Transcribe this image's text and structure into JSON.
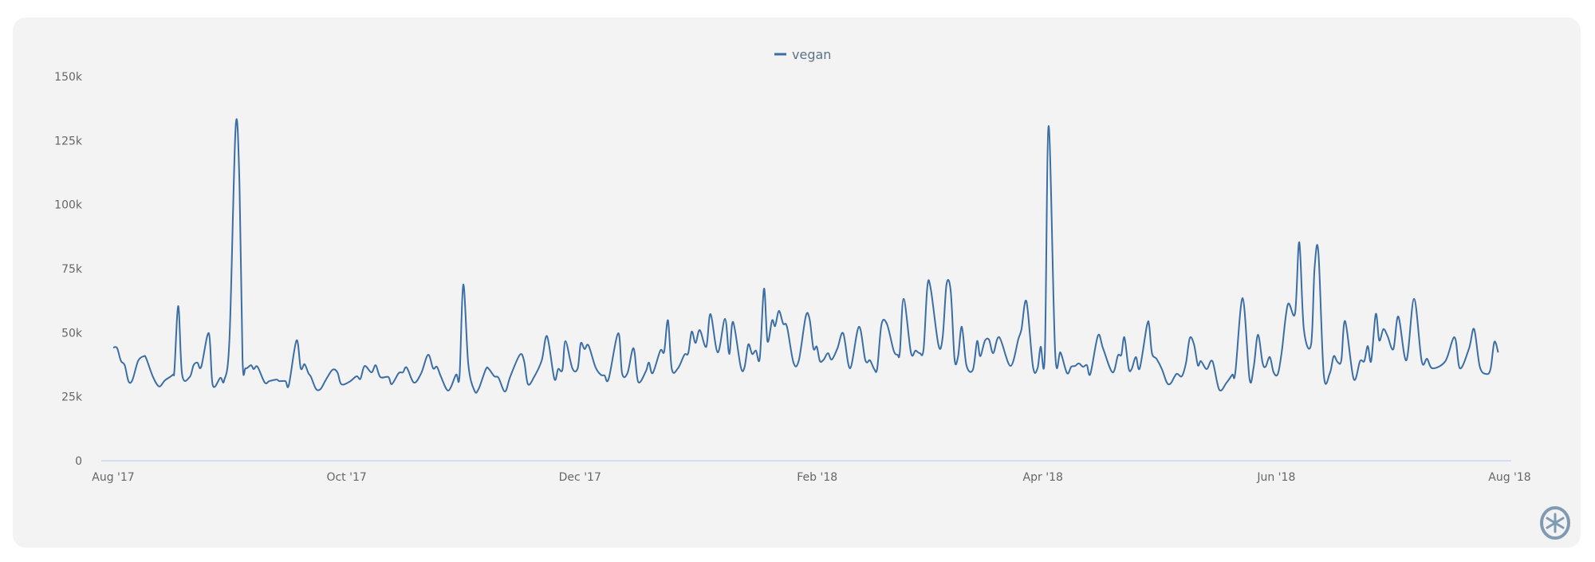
{
  "chart_data": {
    "type": "line",
    "title": "",
    "xlabel": "",
    "ylabel": "",
    "x_unit": "days since Aug 1 2017",
    "value_scale": 1000,
    "ylim": [
      0,
      150
    ],
    "xlim": [
      0,
      365
    ],
    "grid": false,
    "legend_position": "top-center",
    "y_ticks": [
      {
        "value": 0,
        "label": "0"
      },
      {
        "value": 25,
        "label": "25k"
      },
      {
        "value": 50,
        "label": "50k"
      },
      {
        "value": 75,
        "label": "75k"
      },
      {
        "value": 100,
        "label": "100k"
      },
      {
        "value": 125,
        "label": "125k"
      },
      {
        "value": 150,
        "label": "150k"
      }
    ],
    "x_ticks": [
      {
        "value": 0,
        "label": "Aug '17"
      },
      {
        "value": 61,
        "label": "Oct '17"
      },
      {
        "value": 122,
        "label": "Dec '17"
      },
      {
        "value": 184,
        "label": "Feb '18"
      },
      {
        "value": 243,
        "label": "Apr '18"
      },
      {
        "value": 304,
        "label": "Jun '18"
      },
      {
        "value": 365,
        "label": "Aug '18"
      }
    ],
    "series": [
      {
        "name": "vegan",
        "color": "#3a6ea5",
        "points": [
          [
            0,
            44.2
          ],
          [
            1,
            44
          ],
          [
            2,
            39
          ],
          [
            3,
            37.3
          ],
          [
            4,
            31
          ],
          [
            5,
            31.5
          ],
          [
            6.5,
            39
          ],
          [
            8,
            40.8
          ],
          [
            8.6,
            40
          ],
          [
            10.4,
            32.7
          ],
          [
            12,
            29
          ],
          [
            13.5,
            31.4
          ],
          [
            15.6,
            33.6
          ],
          [
            16,
            35.8
          ],
          [
            17,
            60.4
          ],
          [
            18,
            33.6
          ],
          [
            20,
            32.7
          ],
          [
            21,
            37.3
          ],
          [
            22,
            38.3
          ],
          [
            23,
            36.7
          ],
          [
            25,
            49.8
          ],
          [
            26,
            29.6
          ],
          [
            28,
            32.4
          ],
          [
            29,
            31.4
          ],
          [
            30.4,
            48
          ],
          [
            32,
            130.4
          ],
          [
            33,
            108
          ],
          [
            33.8,
            39.8
          ],
          [
            34.6,
            36.1
          ],
          [
            36,
            37.3
          ],
          [
            36.7,
            35.8
          ],
          [
            37.7,
            36.7
          ],
          [
            39.6,
            30.5
          ],
          [
            40.8,
            31.1
          ],
          [
            42.7,
            31.7
          ],
          [
            43.4,
            31.1
          ],
          [
            45,
            31.1
          ],
          [
            45.9,
            29.6
          ],
          [
            47.9,
            47
          ],
          [
            49,
            36.1
          ],
          [
            50,
            37.7
          ],
          [
            51,
            34.2
          ],
          [
            51.7,
            32.7
          ],
          [
            53,
            28
          ],
          [
            54.2,
            28
          ],
          [
            55.5,
            31.4
          ],
          [
            57.3,
            35.5
          ],
          [
            58.6,
            34.5
          ],
          [
            59.6,
            29.9
          ],
          [
            61.7,
            30.8
          ],
          [
            63.6,
            33
          ],
          [
            64.6,
            32
          ],
          [
            65.7,
            37
          ],
          [
            67.5,
            34.5
          ],
          [
            68.6,
            37.3
          ],
          [
            69.8,
            32.7
          ],
          [
            71.9,
            32.7
          ],
          [
            72.8,
            29.9
          ],
          [
            74.6,
            34.2
          ],
          [
            75.7,
            34.5
          ],
          [
            76.7,
            36.4
          ],
          [
            78.6,
            30.5
          ],
          [
            80.5,
            34.2
          ],
          [
            82.3,
            41.4
          ],
          [
            83.6,
            36.1
          ],
          [
            84.6,
            36.7
          ],
          [
            85.7,
            32.7
          ],
          [
            87.6,
            27.4
          ],
          [
            89.6,
            33.6
          ],
          [
            90.5,
            33
          ],
          [
            91.5,
            68.8
          ],
          [
            92.8,
            37.7
          ],
          [
            94.4,
            27.4
          ],
          [
            95.5,
            28
          ],
          [
            97.4,
            35.8
          ],
          [
            98.2,
            35.8
          ],
          [
            99.6,
            33
          ],
          [
            100.7,
            32.4
          ],
          [
            102.4,
            27
          ],
          [
            103.8,
            33
          ],
          [
            106.3,
            41.4
          ],
          [
            107.4,
            38.9
          ],
          [
            108.4,
            29.9
          ],
          [
            110,
            32.7
          ],
          [
            112,
            39.2
          ],
          [
            113.4,
            48.6
          ],
          [
            115.3,
            32
          ],
          [
            116.3,
            35.8
          ],
          [
            117.4,
            35.5
          ],
          [
            118.2,
            46.7
          ],
          [
            120,
            36.1
          ],
          [
            121.4,
            36.1
          ],
          [
            122.2,
            45.8
          ],
          [
            123.2,
            43.6
          ],
          [
            124.2,
            45.1
          ],
          [
            126,
            36.7
          ],
          [
            127.4,
            33.6
          ],
          [
            128.4,
            33.3
          ],
          [
            129.5,
            32
          ],
          [
            132,
            49.8
          ],
          [
            133,
            34.2
          ],
          [
            134.4,
            34.2
          ],
          [
            136,
            43.9
          ],
          [
            137.2,
            30.8
          ],
          [
            139.2,
            34.9
          ],
          [
            140,
            38.3
          ],
          [
            141,
            34.2
          ],
          [
            143,
            43
          ],
          [
            144,
            42.6
          ],
          [
            145,
            54.8
          ],
          [
            146,
            35.8
          ],
          [
            147.6,
            36.1
          ],
          [
            149.3,
            41.4
          ],
          [
            150.3,
            42
          ],
          [
            151.2,
            50.4
          ],
          [
            152.2,
            46
          ],
          [
            153.3,
            51
          ],
          [
            155,
            44.5
          ],
          [
            156.1,
            57.3
          ],
          [
            158,
            42.3
          ],
          [
            159.9,
            55.4
          ],
          [
            161,
            41.7
          ],
          [
            162,
            54.2
          ],
          [
            164,
            36.7
          ],
          [
            165,
            36.4
          ],
          [
            166,
            45.4
          ],
          [
            167,
            41.7
          ],
          [
            168,
            43
          ],
          [
            169,
            40.1
          ],
          [
            170.1,
            67.2
          ],
          [
            171,
            46.7
          ],
          [
            172.2,
            54.8
          ],
          [
            173,
            52.6
          ],
          [
            174,
            58.5
          ],
          [
            175.1,
            53.5
          ],
          [
            176.1,
            52.3
          ],
          [
            177.8,
            38.3
          ],
          [
            179.2,
            39.2
          ],
          [
            181,
            56.3
          ],
          [
            182,
            55.4
          ],
          [
            183,
            43.9
          ],
          [
            183.9,
            44.5
          ],
          [
            184.7,
            38.9
          ],
          [
            185.7,
            39.5
          ],
          [
            186.8,
            42
          ],
          [
            187.8,
            39.5
          ],
          [
            189.3,
            43.9
          ],
          [
            190.8,
            49.8
          ],
          [
            192.6,
            36.1
          ],
          [
            194.9,
            52.3
          ],
          [
            196.6,
            39.2
          ],
          [
            197.8,
            39.2
          ],
          [
            198.9,
            35.8
          ],
          [
            199.7,
            36.1
          ],
          [
            200.8,
            53.2
          ],
          [
            202.2,
            53.5
          ],
          [
            204,
            43
          ],
          [
            205,
            41.4
          ],
          [
            205.6,
            42.3
          ],
          [
            206.6,
            63.2
          ],
          [
            208.5,
            42.3
          ],
          [
            209.7,
            43
          ],
          [
            210.8,
            42
          ],
          [
            211.8,
            43.6
          ],
          [
            212.8,
            68.2
          ],
          [
            213.7,
            66.9
          ],
          [
            215.7,
            45.1
          ],
          [
            216.8,
            48.2
          ],
          [
            217.8,
            68.8
          ],
          [
            218.9,
            66.3
          ],
          [
            219.9,
            39.8
          ],
          [
            220.8,
            40.5
          ],
          [
            221.8,
            52.3
          ],
          [
            223,
            37.3
          ],
          [
            224.7,
            35.5
          ],
          [
            225.8,
            46.7
          ],
          [
            226.6,
            40.8
          ],
          [
            227.8,
            46.7
          ],
          [
            228.9,
            47.3
          ],
          [
            230,
            42
          ],
          [
            231.6,
            48.2
          ],
          [
            234.5,
            37
          ],
          [
            236.6,
            47.6
          ],
          [
            237.4,
            51.4
          ],
          [
            238.7,
            62.2
          ],
          [
            240.4,
            36.7
          ],
          [
            241.6,
            36.1
          ],
          [
            242.4,
            44.5
          ],
          [
            243.5,
            41.4
          ],
          [
            244.5,
            130.7
          ],
          [
            246.2,
            42.3
          ],
          [
            247.6,
            42.3
          ],
          [
            249.3,
            34.2
          ],
          [
            250.4,
            36.7
          ],
          [
            251.4,
            37
          ],
          [
            252.4,
            38
          ],
          [
            253.5,
            36.7
          ],
          [
            254.5,
            37.3
          ],
          [
            255.4,
            33.9
          ],
          [
            257.4,
            48.9
          ],
          [
            258.7,
            43.9
          ],
          [
            261.2,
            34.5
          ],
          [
            262.6,
            41.1
          ],
          [
            263.5,
            41.4
          ],
          [
            264.3,
            48.2
          ],
          [
            265.4,
            36.1
          ],
          [
            266.2,
            35.8
          ],
          [
            267.3,
            40.5
          ],
          [
            268.3,
            36.1
          ],
          [
            270.2,
            52.9
          ],
          [
            270.8,
            52.6
          ],
          [
            271.5,
            42
          ],
          [
            272.7,
            39.8
          ],
          [
            274.1,
            35.8
          ],
          [
            275.4,
            30.5
          ],
          [
            276.4,
            30.2
          ],
          [
            277.9,
            33.9
          ],
          [
            279.3,
            33
          ],
          [
            280.4,
            38.3
          ],
          [
            281.4,
            47.9
          ],
          [
            282.5,
            45.4
          ],
          [
            283.5,
            37.3
          ],
          [
            284.3,
            38.9
          ],
          [
            285.8,
            35.8
          ],
          [
            287.3,
            38.9
          ],
          [
            289.1,
            27.7
          ],
          [
            291,
            30.5
          ],
          [
            292.5,
            33.6
          ],
          [
            293.3,
            34.5
          ],
          [
            295.2,
            63.5
          ],
          [
            297,
            32
          ],
          [
            298.1,
            36.7
          ],
          [
            299.2,
            49.2
          ],
          [
            300.4,
            38.3
          ],
          [
            301.2,
            36.7
          ],
          [
            302.3,
            40.5
          ],
          [
            303.3,
            34.5
          ],
          [
            304.4,
            33.9
          ],
          [
            305.4,
            42.3
          ],
          [
            307,
            61
          ],
          [
            308.9,
            57.6
          ],
          [
            310,
            85.3
          ],
          [
            311.2,
            51.4
          ],
          [
            313.1,
            45.4
          ],
          [
            314,
            75
          ],
          [
            315,
            81.5
          ],
          [
            316.4,
            33.6
          ],
          [
            318,
            34.2
          ],
          [
            319,
            40.8
          ],
          [
            320,
            38.6
          ],
          [
            321,
            39.2
          ],
          [
            322,
            54.5
          ],
          [
            324.2,
            32
          ],
          [
            325.9,
            38.9
          ],
          [
            327,
            38.9
          ],
          [
            327.9,
            44.8
          ],
          [
            328.8,
            38.9
          ],
          [
            330,
            57.3
          ],
          [
            330.9,
            47
          ],
          [
            332,
            51.4
          ],
          [
            333.1,
            48.6
          ],
          [
            334.6,
            43.6
          ],
          [
            335.9,
            56.3
          ],
          [
            338,
            39.2
          ],
          [
            340,
            63.2
          ],
          [
            342,
            38.9
          ],
          [
            343.4,
            39.8
          ],
          [
            344.8,
            36.1
          ],
          [
            348.2,
            38.9
          ],
          [
            350.6,
            48.2
          ],
          [
            352,
            36.1
          ],
          [
            354.4,
            43.9
          ],
          [
            355.7,
            51.4
          ],
          [
            357.2,
            36.7
          ],
          [
            358.9,
            33.9
          ],
          [
            360,
            35.8
          ],
          [
            361,
            46.4
          ],
          [
            362,
            42.3
          ]
        ]
      }
    ]
  }
}
